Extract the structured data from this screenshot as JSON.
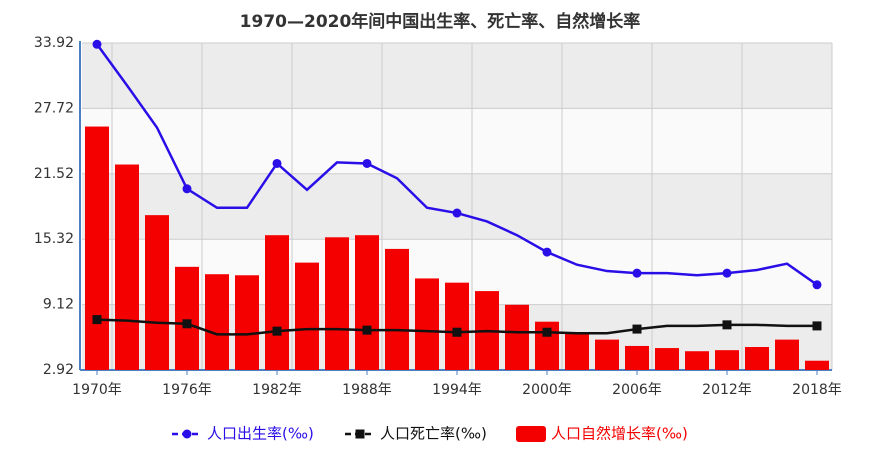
{
  "chart_data": {
    "type": "bar-line",
    "title": "1970—2020年间中国出生率、死亡率、自然增长率",
    "categories": [
      "1970年",
      null,
      null,
      "1976年",
      null,
      null,
      "1982年",
      null,
      null,
      "1988年",
      null,
      null,
      "1994年",
      null,
      null,
      "2000年",
      null,
      null,
      "2006年",
      null,
      null,
      "2012年",
      null,
      null,
      "2018年"
    ],
    "ylim": [
      2.92,
      33.92
    ],
    "yticks": [
      2.92,
      9.12,
      15.32,
      21.52,
      27.72,
      33.92
    ],
    "series": [
      {
        "name": "人口出生率(‰)",
        "color": "#2a0ee8",
        "kind": "line",
        "marker": "circle",
        "values": [
          33.8,
          29.9,
          25.9,
          20.1,
          18.3,
          18.3,
          22.5,
          20.0,
          22.6,
          22.5,
          21.1,
          18.3,
          17.8,
          17.0,
          15.7,
          14.1,
          12.9,
          12.3,
          12.1,
          12.1,
          11.9,
          12.1,
          12.4,
          13.0,
          11.0
        ]
      },
      {
        "name": "人口死亡率(‰)",
        "color": "#111111",
        "kind": "line",
        "marker": "square",
        "values": [
          7.7,
          7.6,
          7.4,
          7.3,
          6.3,
          6.3,
          6.6,
          6.8,
          6.8,
          6.7,
          6.7,
          6.6,
          6.5,
          6.6,
          6.5,
          6.5,
          6.4,
          6.4,
          6.8,
          7.1,
          7.1,
          7.2,
          7.2,
          7.1,
          7.1
        ]
      },
      {
        "name": "人口自然增长率(‰)",
        "color": "#f50000",
        "kind": "bar",
        "values": [
          26.0,
          22.4,
          17.6,
          12.7,
          12.0,
          11.9,
          15.7,
          13.1,
          15.5,
          15.7,
          14.4,
          11.6,
          11.2,
          10.4,
          9.1,
          7.5,
          6.5,
          5.8,
          5.2,
          5.0,
          4.7,
          4.8,
          5.1,
          5.8,
          3.8
        ]
      }
    ],
    "grid": true
  }
}
